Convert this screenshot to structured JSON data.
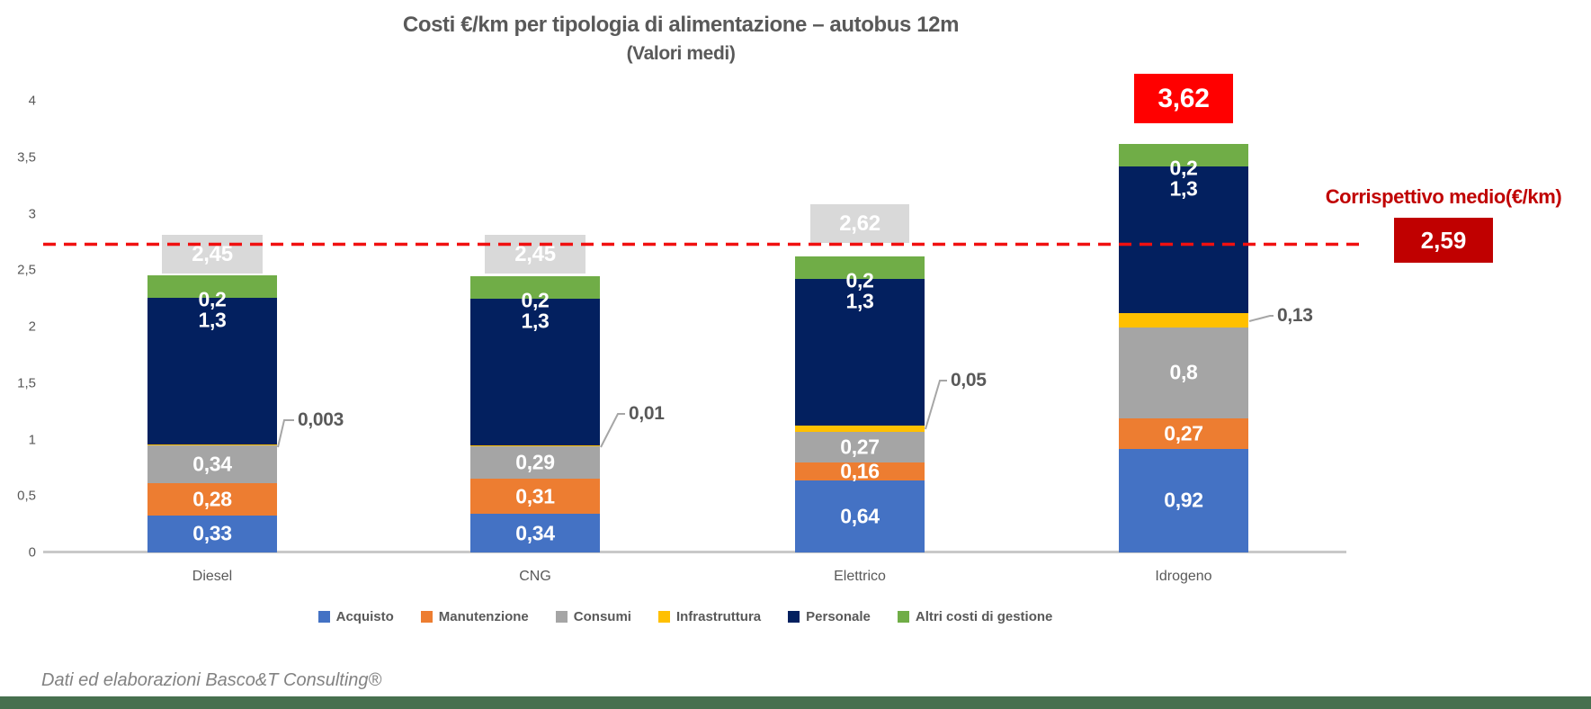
{
  "title": {
    "line1": "Costi €/km per tipologia di alimentazione – autobus 12m",
    "line2": "(Valori medi)"
  },
  "footer": "Dati ed elaborazioni Basco&T Consulting®",
  "reference_line": {
    "label": "Corrispettivo medio(€/km)",
    "value_label": "2,59",
    "value": 2.59,
    "line_color": "#F01010",
    "box_color": "#C00000"
  },
  "y_axis": {
    "ticks": [
      "4",
      "3,5",
      "3",
      "2,5",
      "2",
      "1,5",
      "1",
      "0,5",
      "0"
    ],
    "tick_values": [
      4,
      3.5,
      3,
      2.5,
      2,
      1.5,
      1,
      0.5,
      0
    ],
    "min": 0,
    "max": 4,
    "step": 0.5,
    "axis_color": "#C9C9C9"
  },
  "chart_data": {
    "type": "bar",
    "stacked": true,
    "title": "Costi €/km per tipologia di alimentazione – autobus 12m (Valori medi)",
    "xlabel": "",
    "ylabel": "",
    "ylim": [
      0,
      4
    ],
    "grid": false,
    "legend_position": "bottom",
    "decimal_separator": ",",
    "categories": [
      "Diesel",
      "CNG",
      "Elettrico",
      "Idrogeno"
    ],
    "series": [
      {
        "name": "Acquisto",
        "color": "#4472C4",
        "values": [
          0.33,
          0.34,
          0.64,
          0.92
        ],
        "labels": [
          "0,33",
          "0,34",
          "0,64",
          "0,92"
        ]
      },
      {
        "name": "Manutenzione",
        "color": "#ED7D31",
        "values": [
          0.28,
          0.31,
          0.16,
          0.27
        ],
        "labels": [
          "0,28",
          "0,31",
          "0,16",
          "0,27"
        ]
      },
      {
        "name": "Consumi",
        "color": "#A5A5A5",
        "values": [
          0.34,
          0.29,
          0.27,
          0.8
        ],
        "labels": [
          "0,34",
          "0,29",
          "0,27",
          "0,8"
        ]
      },
      {
        "name": "Infrastruttura",
        "color": "#FFC000",
        "values": [
          0.003,
          0.01,
          0.05,
          0.13
        ],
        "labels": [
          "0,003",
          "0,01",
          "0,05",
          "0,13"
        ],
        "label_style": "callout"
      },
      {
        "name": "Personale",
        "color": "#03205F",
        "values": [
          1.3,
          1.3,
          1.3,
          1.3
        ],
        "labels": [
          "1,3",
          "1,3",
          "1,3",
          "1,3"
        ]
      },
      {
        "name": "Altri costi di gestione",
        "color": "#70AD47",
        "values": [
          0.2,
          0.2,
          0.2,
          0.2
        ],
        "labels": [
          "0,2",
          "0,2",
          "0,2",
          "0,2"
        ]
      }
    ],
    "totals": {
      "values": [
        2.45,
        2.45,
        2.62,
        3.62
      ],
      "labels": [
        "2,45",
        "2,45",
        "2,62",
        "3,62"
      ],
      "box_colors": [
        "#D9D9D9",
        "#D9D9D9",
        "#D9D9D9",
        "#FF0000"
      ],
      "text_color": "#FFFFFF"
    },
    "callout": {
      "line_color": "#A6A6A6",
      "text_color": "#595959"
    }
  }
}
